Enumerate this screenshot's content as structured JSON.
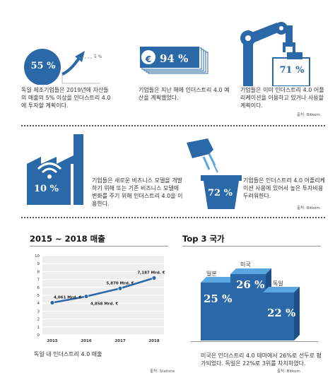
{
  "colors": {
    "primary": "#2a68a8",
    "dark": "#1c4f86",
    "light": "#5aa6e0",
    "text": "#333333"
  },
  "stat_55": {
    "value": "55 %",
    "marker": "5 %",
    "text": "독일 제조기업들은 2019년에 자산들의 매출의 5% 이상을 인더스트리 4.0에 투자할 계획이다."
  },
  "stat_94": {
    "value": "94 %",
    "currency_symbol": "€",
    "text": "기업들은 지난 해에 인더스트리 4.0 예산을 계획했었다."
  },
  "stat_71": {
    "value": "71 %",
    "text": "기업들은 이미 인더스트리 4.0 어플리케이션을 이용하고 있거나 사용할 계획이다."
  },
  "source_row1": "출처: Bitkom",
  "stat_10": {
    "value": "10 %",
    "text": "기업들은 새로운 비즈니스 모델을 개발하기 위해 또는 기존 비즈니스 모델에 변화를 주기 위해 인더스트리 4.0을 이용한다."
  },
  "stat_72": {
    "value": "72 %",
    "text": "기업들은 인더스트리 4.0 어플리케이션 사용에 있어서 높은 투자비용 두려워한다."
  },
  "source_row2": "출처: Bitkom",
  "revenue": {
    "title": "2015 ~ 2018 매출",
    "caption": "독일 내 인더스트리 4.0 매출",
    "source": "출처: Statista"
  },
  "top3": {
    "title": "Top 3 국가",
    "countries": [
      {
        "name": "일본",
        "value": "25 %"
      },
      {
        "name": "미국",
        "value": "26 %"
      },
      {
        "name": "독일",
        "value": "22 %"
      }
    ],
    "caption": "미국은 인더스트리 4.0 테마에서 26%로 선두로 평가되었다. 독일은 22%로 3위를 차지하였다.",
    "source": "출처: Bitkom"
  },
  "chart_data": {
    "type": "line",
    "x": [
      2015,
      2016,
      2017,
      2018
    ],
    "values": [
      4.061,
      4.858,
      5.87,
      7.187
    ],
    "data_labels": [
      "4,061 Mrd. €",
      "4,858 Mrd. €",
      "5,870 Mrd. €",
      "7,187 Mrd. €"
    ],
    "yticks": [
      "0",
      "1",
      "2",
      "3",
      "4",
      "5",
      "6",
      "7",
      "8",
      "9",
      "10"
    ],
    "xticks": [
      "2015",
      "2016",
      "2017",
      "2018"
    ],
    "ylim": [
      0,
      10
    ],
    "grid": true,
    "title": "2015 ~ 2018 매출",
    "xlabel": "",
    "ylabel": ""
  }
}
